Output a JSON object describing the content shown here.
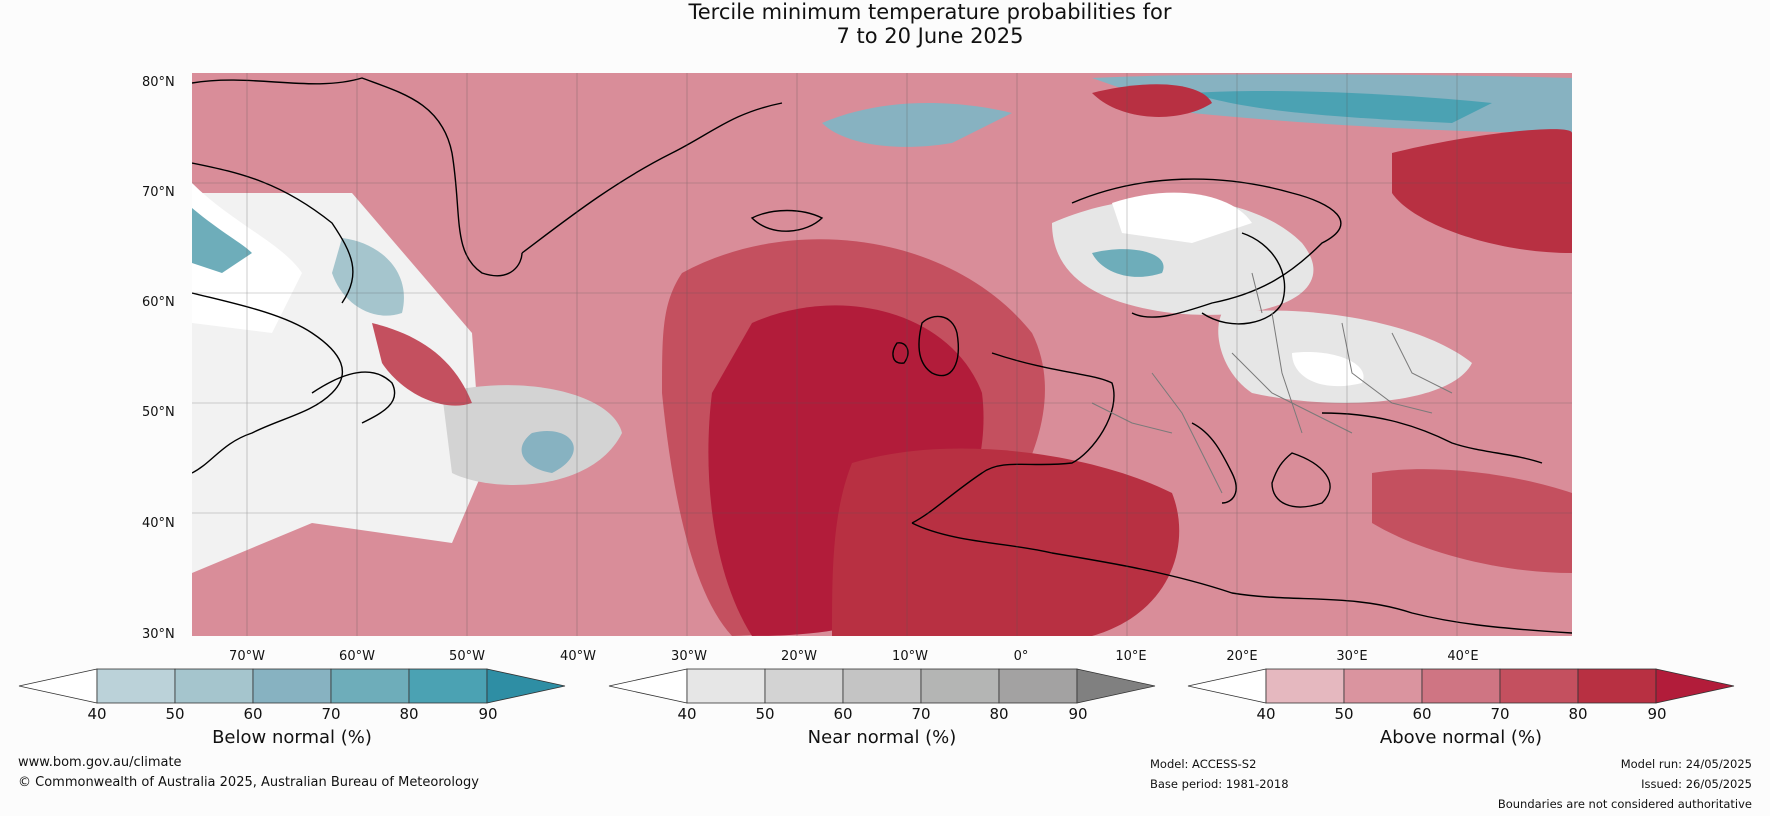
{
  "title": {
    "line1": "Tercile minimum temperature probabilities for",
    "line2": "7 to 20 June 2025"
  },
  "map": {
    "latitude_labels": [
      "80°N",
      "70°N",
      "60°N",
      "50°N",
      "40°N",
      "30°N"
    ],
    "longitude_labels": [
      "70°W",
      "60°W",
      "50°W",
      "40°W",
      "30°W",
      "20°W",
      "10°W",
      "0°",
      "10°E",
      "20°E",
      "30°E",
      "40°E"
    ],
    "projection": "equirectangular",
    "lat_range": [
      30,
      80
    ],
    "lon_range": [
      -75,
      50
    ],
    "gridlines": true
  },
  "legend": {
    "below": {
      "label": "Below normal (%)",
      "ticks": [
        "40",
        "50",
        "60",
        "70",
        "80",
        "90"
      ],
      "colors": [
        "#ffffff",
        "#bbd2d9",
        "#a5c5cd",
        "#87b2c1",
        "#6eadba",
        "#4ba2b3",
        "#2e8ea4"
      ]
    },
    "near": {
      "label": "Near normal (%)",
      "ticks": [
        "40",
        "50",
        "60",
        "70",
        "80",
        "90"
      ],
      "colors": [
        "#ffffff",
        "#e6e6e6",
        "#d3d3d3",
        "#c4c4c4",
        "#b4b5b4",
        "#a3a2a2",
        "#808080"
      ]
    },
    "above": {
      "label": "Above normal (%)",
      "ticks": [
        "40",
        "50",
        "60",
        "70",
        "80",
        "90"
      ],
      "colors": [
        "#ffffff",
        "#e5b8bf",
        "#da949f",
        "#cf7583",
        "#c4505f",
        "#b83042",
        "#b21c3a"
      ]
    }
  },
  "footer": {
    "website": "www.bom.gov.au/climate",
    "copyright": "© Commonwealth of Australia 2025, Australian Bureau of Meteorology",
    "model": "Model: ACCESS-S2",
    "base_period": "Base period: 1981-2018",
    "model_run": "Model run: 24/05/2025",
    "issued": "Issued: 26/05/2025",
    "disclaimer": "Boundaries are not considered authoritative"
  }
}
